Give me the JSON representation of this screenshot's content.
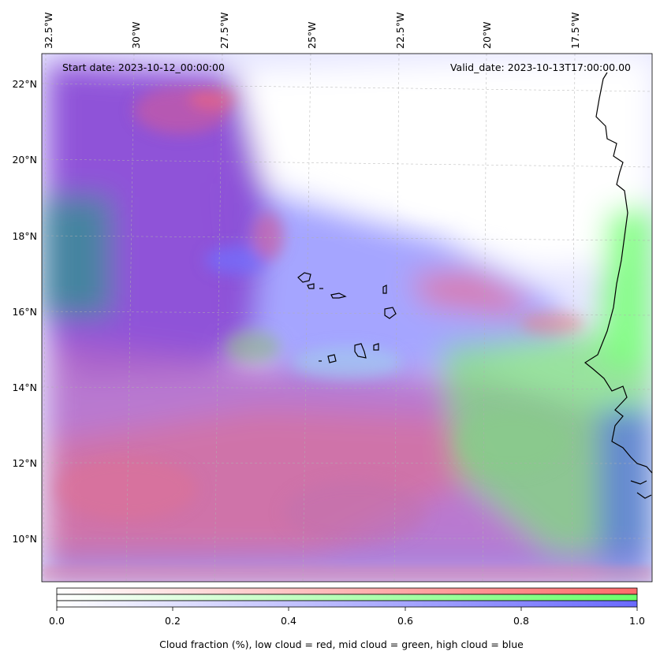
{
  "map": {
    "start_date_text": "Start date: 2023-10-12_00:00:00",
    "valid_date_text": "Valid_date: 2023-10-13T17:00:00.00",
    "lon_labels": [
      "32.5°W",
      "30°W",
      "27.5°W",
      "25°W",
      "22.5°W",
      "20°W",
      "17.5°W"
    ],
    "lat_labels": [
      "22°N",
      "20°N",
      "18°N",
      "16°N",
      "14°N",
      "12°N",
      "10°N"
    ],
    "coastline_color": "#000000",
    "layers": [
      {
        "name": "low cloud",
        "color": "#ff4040"
      },
      {
        "name": "mid cloud",
        "color": "#40ff40"
      },
      {
        "name": "high cloud",
        "color": "#4040ff"
      }
    ]
  },
  "colorbar": {
    "ticks": [
      "0.0",
      "0.2",
      "0.4",
      "0.6",
      "0.8",
      "1.0"
    ],
    "label": "Cloud fraction (%), low cloud = red, mid cloud = green, high cloud = blue",
    "colors": {
      "low": "#ff6a6a",
      "mid": "#6aff6a",
      "high": "#6a6aff"
    }
  }
}
